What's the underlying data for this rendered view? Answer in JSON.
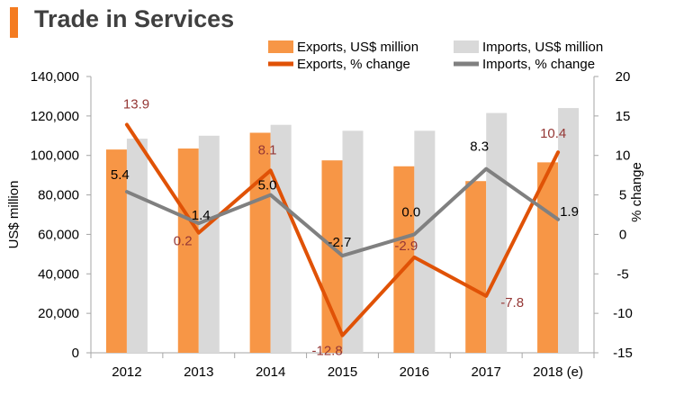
{
  "title": "Trade in Services",
  "chart_data": {
    "type": "bar+line",
    "categories": [
      "2012",
      "2013",
      "2014",
      "2015",
      "2016",
      "2017",
      "2018 (e)"
    ],
    "bar_series": [
      {
        "name": "Exports, US$ million",
        "color": "#f79646",
        "values": [
          103000,
          103500,
          111500,
          97500,
          94500,
          87000,
          96500
        ]
      },
      {
        "name": "Imports, US$ million",
        "color": "#d9d9d9",
        "values": [
          108500,
          110000,
          115500,
          112500,
          112500,
          121500,
          124000
        ]
      }
    ],
    "line_series": [
      {
        "name": "Exports, % change",
        "color": "#e05206",
        "values": [
          13.9,
          0.2,
          8.1,
          -12.8,
          -2.9,
          -7.8,
          10.4
        ],
        "labels": [
          "13.9",
          "0.2",
          "8.1",
          "-12.8",
          "-2.9",
          "-7.8",
          "10.4"
        ],
        "label_color": "#953735"
      },
      {
        "name": "Imports, % change",
        "color": "#808080",
        "values": [
          5.4,
          1.4,
          5.0,
          -2.7,
          0.0,
          8.3,
          1.9
        ],
        "labels": [
          "5.4",
          "1.4",
          "5.0",
          "-2.7",
          "0.0",
          "8.3",
          "1.9"
        ],
        "label_color": "#000000"
      }
    ],
    "ylabel_left": "US$ million",
    "ylabel_right": "% change",
    "ylim_left": [
      0,
      140000
    ],
    "ylim_right": [
      -15,
      20
    ],
    "yticks_left": [
      "0",
      "20,000",
      "40,000",
      "60,000",
      "80,000",
      "100,000",
      "120,000",
      "140,000"
    ],
    "yticks_right": [
      "-15",
      "-10",
      "-5",
      "0",
      "5",
      "10",
      "15",
      "20"
    ]
  }
}
